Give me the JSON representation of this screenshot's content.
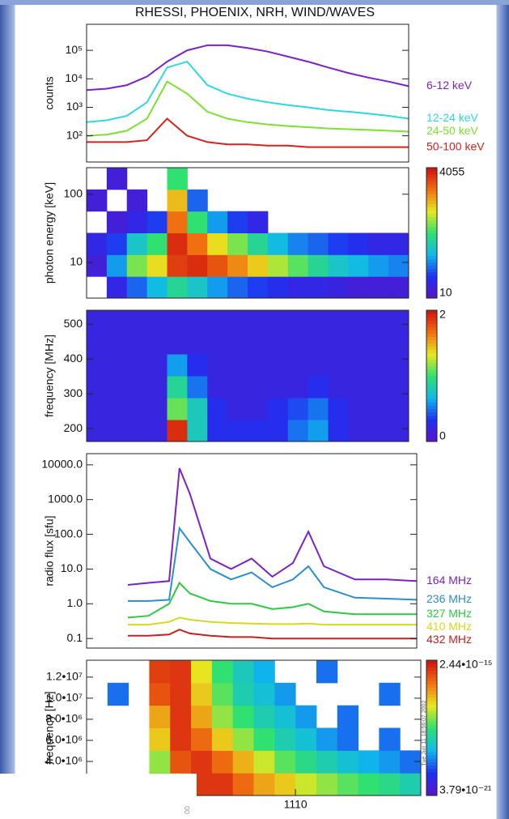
{
  "chart_data": [
    {
      "type": "line",
      "title": "RHESSI, PHOENIX, NRH, WIND/WAVES",
      "ylabel": "counts",
      "ylog": true,
      "ylim": [
        12,
        820000
      ],
      "yticks": [
        {
          "value": 100,
          "label": "10²"
        },
        {
          "value": 1000,
          "label": "10³"
        },
        {
          "value": 10000,
          "label": "10⁴"
        },
        {
          "value": 100000,
          "label": "10⁵"
        }
      ],
      "xlim": [
        650,
        682
      ],
      "x": [
        650,
        652,
        654,
        656,
        658,
        660,
        662,
        664,
        666,
        668,
        670,
        672,
        674,
        676,
        678,
        680,
        682
      ],
      "series": [
        {
          "name": "6-12 keV",
          "color": "#7a22c8",
          "values": [
            4000,
            4500,
            6000,
            12000,
            40000,
            100000,
            150000,
            150000,
            120000,
            90000,
            60000,
            40000,
            25000,
            16000,
            11000,
            8000,
            5500
          ]
        },
        {
          "name": "12-24 keV",
          "color": "#2ed8e0",
          "values": [
            300,
            350,
            500,
            1500,
            25000,
            40000,
            6000,
            3000,
            2000,
            1500,
            1200,
            1000,
            800,
            700,
            600,
            500,
            400
          ]
        },
        {
          "name": "24-50 keV",
          "color": "#7ee030",
          "values": [
            100,
            110,
            150,
            400,
            8000,
            3000,
            700,
            400,
            300,
            250,
            220,
            200,
            180,
            170,
            160,
            150,
            140
          ]
        },
        {
          "name": "50-100 keV",
          "color": "#d8201c",
          "values": [
            60,
            60,
            60,
            70,
            400,
            100,
            60,
            50,
            50,
            45,
            45,
            40,
            40,
            40,
            40,
            40,
            40
          ]
        }
      ]
    },
    {
      "type": "heatmap",
      "ylabel": "photon energy [keV]",
      "ylog": true,
      "ylim": [
        3,
        245
      ],
      "yticks": [
        10,
        100
      ],
      "xlim": [
        650,
        682
      ],
      "clog": true,
      "clim": [
        10,
        4055
      ],
      "cticks": [
        10,
        4055
      ],
      "colormap": [
        "#5a14c8",
        "#2030f0",
        "#10b8ec",
        "#30e070",
        "#e8e820",
        "#f07010",
        "#d01010"
      ],
      "z": [
        [
          null,
          20,
          40,
          80,
          150,
          100,
          60,
          40,
          30,
          25,
          20,
          20,
          18,
          15,
          15,
          15
        ],
        [
          15,
          60,
          300,
          600,
          2500,
          3000,
          2000,
          1200,
          700,
          400,
          250,
          150,
          100,
          80,
          60,
          50
        ],
        [
          20,
          30,
          100,
          200,
          3000,
          1500,
          600,
          300,
          150,
          80,
          50,
          40,
          30,
          25,
          20,
          20
        ],
        [
          null,
          15,
          20,
          30,
          1500,
          200,
          60,
          30,
          20,
          null,
          null,
          null,
          null,
          null,
          null,
          null
        ],
        [
          15,
          null,
          15,
          null,
          800,
          40,
          null,
          null,
          null,
          null,
          null,
          null,
          null,
          null,
          null,
          null
        ],
        [
          null,
          15,
          null,
          null,
          200,
          null,
          null,
          null,
          null,
          null,
          null,
          null,
          null,
          null,
          null,
          null
        ]
      ]
    },
    {
      "type": "heatmap",
      "ylabel": "frequency [MHz]",
      "ylim": [
        163,
        540
      ],
      "yticks": [
        200,
        300,
        400,
        500
      ],
      "xlim": [
        650,
        682
      ],
      "clim": [
        0,
        2
      ],
      "cticks": [
        0,
        2
      ],
      "colormap": [
        "#5a14c8",
        "#2030f0",
        "#10b8ec",
        "#30e070",
        "#e8e820",
        "#f07010",
        "#d01010"
      ],
      "z": [
        [
          0.2,
          0.2,
          0.2,
          0.2,
          1.9,
          0.8,
          0.3,
          0.3,
          0.3,
          0.3,
          0.5,
          0.6,
          0.3,
          0.2,
          0.2,
          0.2
        ],
        [
          0.2,
          0.2,
          0.2,
          0.2,
          1.1,
          0.8,
          0.3,
          0.2,
          0.2,
          0.3,
          0.4,
          0.5,
          0.3,
          0.2,
          0.2,
          0.2
        ],
        [
          0.2,
          0.2,
          0.2,
          0.2,
          0.9,
          0.5,
          0.2,
          0.2,
          0.2,
          0.2,
          0.2,
          0.3,
          0.2,
          0.2,
          0.2,
          0.2
        ],
        [
          0.2,
          0.2,
          0.2,
          0.2,
          0.6,
          0.3,
          0.2,
          0.2,
          0.2,
          0.2,
          0.2,
          0.2,
          0.2,
          0.2,
          0.2,
          0.2
        ],
        [
          0.2,
          0.2,
          0.2,
          0.2,
          0.2,
          0.2,
          0.2,
          0.2,
          0.2,
          0.2,
          0.2,
          0.2,
          0.2,
          0.2,
          0.2,
          0.2
        ],
        [
          0.2,
          0.2,
          0.2,
          0.2,
          0.2,
          0.2,
          0.2,
          0.2,
          0.2,
          0.2,
          0.2,
          0.2,
          0.2,
          0.2,
          0.2,
          0.2
        ]
      ]
    },
    {
      "type": "line",
      "ylabel": "radio flux [sfu]",
      "ylog": true,
      "ylim": [
        0.053,
        21000
      ],
      "yticks": [
        {
          "value": 0.1,
          "label": "0.1"
        },
        {
          "value": 1,
          "label": "1.0"
        },
        {
          "value": 10,
          "label": "10.0"
        },
        {
          "value": 100,
          "label": "100.0"
        },
        {
          "value": 1000,
          "label": "1000.0"
        },
        {
          "value": 10000,
          "label": "10000.0"
        }
      ],
      "xlim": [
        650,
        682
      ],
      "x": [
        654,
        656,
        658,
        659,
        660,
        662,
        664,
        666,
        668,
        670,
        671.5,
        673,
        676,
        679,
        682
      ],
      "series": [
        {
          "name": "164 MHz",
          "color": "#7a22c8",
          "values": [
            3.5,
            4,
            4.5,
            8000,
            1500,
            20,
            10,
            20,
            6,
            15,
            120,
            12,
            5,
            5,
            4.5
          ]
        },
        {
          "name": "236 MHz",
          "color": "#2a8ed0",
          "values": [
            1.2,
            1.2,
            1.3,
            150,
            60,
            10,
            5,
            8,
            3,
            5,
            12,
            3,
            1.5,
            1.4,
            1.3
          ]
        },
        {
          "name": "327 MHz",
          "color": "#30c840",
          "values": [
            0.4,
            0.45,
            1,
            4,
            2,
            1.2,
            1,
            1,
            0.7,
            0.8,
            1,
            0.6,
            0.5,
            0.5,
            0.5
          ]
        },
        {
          "name": "410 MHz",
          "color": "#d8d820",
          "values": [
            0.25,
            0.25,
            0.3,
            0.4,
            0.35,
            0.3,
            0.28,
            0.27,
            0.26,
            0.26,
            0.27,
            0.25,
            0.25,
            0.25,
            0.25
          ]
        },
        {
          "name": "432 MHz",
          "color": "#c82020",
          "values": [
            0.12,
            0.12,
            0.13,
            0.18,
            0.14,
            0.12,
            0.11,
            0.11,
            0.1,
            0.1,
            0.1,
            0.1,
            0.1,
            0.1,
            0.1
          ]
        }
      ]
    },
    {
      "type": "heatmap",
      "ylabel": "frequency [Hz]",
      "ylim": [
        770000,
        13600000
      ],
      "yticks": [
        {
          "value": 4000000,
          "label": "4.0•10⁶"
        },
        {
          "value": 6000000,
          "label": "6.0•10⁶"
        },
        {
          "value": 8000000,
          "label": "8.0•10⁶"
        },
        {
          "value": 10000000,
          "label": "1.0•10⁷"
        },
        {
          "value": 12000000,
          "label": "1.2•10⁷"
        }
      ],
      "xlim": [
        650,
        682
      ],
      "xticks": [
        {
          "value": 670,
          "label": "1110"
        }
      ],
      "clog": true,
      "clim": [
        3.79e-21,
        2.44e-15
      ],
      "cticks": [
        {
          "value": 3.79e-21,
          "label": "3.79•10⁻²¹"
        },
        {
          "value": 2.44e-15,
          "label": "2.44•10⁻¹⁵"
        }
      ],
      "colormap": [
        "#5a14c8",
        "#2030f0",
        "#10b8ec",
        "#30e070",
        "#e8e820",
        "#f07010",
        "#d01010"
      ],
      "stamp": "Tue Jun 11 18:56:07 2002",
      "fragment": "00",
      "z": [
        [
          null,
          null,
          null,
          5e-18,
          8e-17,
          1e-15,
          1e-15,
          3e-16,
          1e-16,
          5e-17,
          2e-17,
          1e-17,
          5e-18,
          3e-18,
          2e-18,
          1e-18
        ],
        [
          null,
          null,
          null,
          1e-17,
          5e-16,
          1e-15,
          3e-16,
          8e-17,
          2e-17,
          5e-18,
          2e-18,
          1e-18,
          5e-19,
          3e-19,
          2e-19,
          1e-19
        ],
        [
          null,
          null,
          null,
          5e-17,
          1e-15,
          3e-16,
          5e-17,
          1e-17,
          3e-18,
          1e-18,
          5e-19,
          2e-19,
          1e-19,
          null,
          1e-19,
          null
        ],
        [
          null,
          null,
          null,
          1e-16,
          1e-15,
          1e-16,
          1e-17,
          3e-18,
          1e-18,
          5e-19,
          2e-19,
          null,
          1e-19,
          null,
          null,
          null
        ],
        [
          null,
          1e-19,
          null,
          5e-16,
          1e-15,
          5e-17,
          5e-18,
          1e-18,
          5e-19,
          2e-19,
          null,
          null,
          null,
          null,
          1e-19,
          null
        ],
        [
          null,
          null,
          null,
          8e-16,
          1e-15,
          3e-17,
          3e-18,
          8e-19,
          3e-19,
          null,
          null,
          1e-19,
          null,
          null,
          null,
          null
        ]
      ]
    }
  ]
}
